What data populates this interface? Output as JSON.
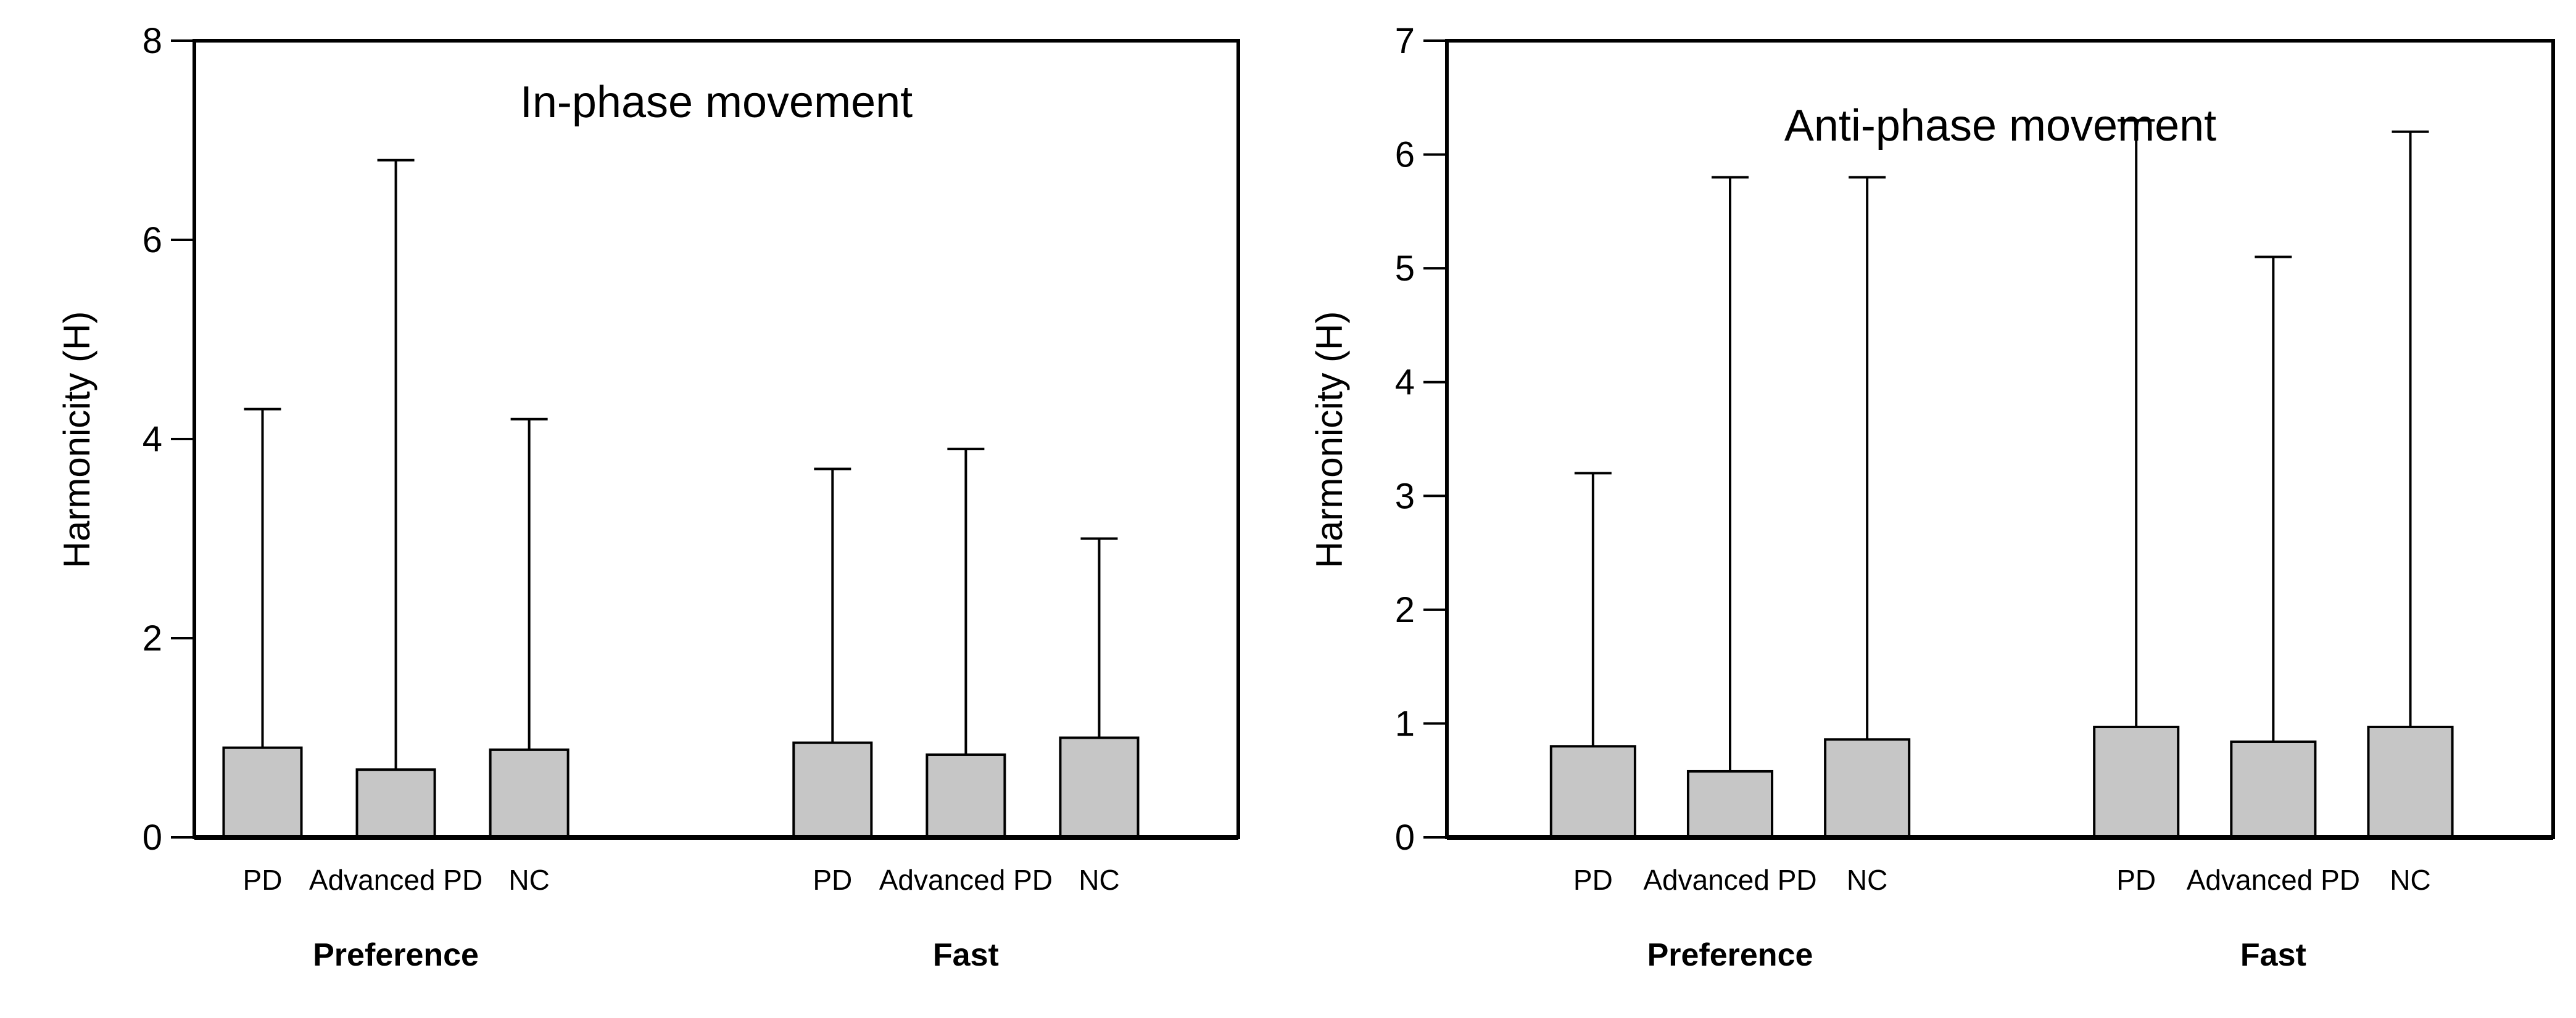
{
  "figure": {
    "description_colors": {
      "bar_fill": "#c6c6c6",
      "stroke": "#000000",
      "background": "#ffffff"
    }
  },
  "chart_data": [
    {
      "type": "bar",
      "title": "In-phase movement",
      "ylabel": "Harmonicity (H)",
      "xlabel": "",
      "ylim": [
        0,
        8
      ],
      "yticks": [
        0,
        2,
        4,
        6,
        8
      ],
      "grid": false,
      "legend_position": "none",
      "error_bars": "upper-only-with-caps",
      "bar_fill": "#c6c6c6",
      "groups": [
        {
          "label": "Preference",
          "categories": [
            "PD",
            "Advanced PD",
            "NC"
          ],
          "values": [
            0.9,
            0.68,
            0.88
          ],
          "error_tops": [
            4.3,
            6.8,
            4.2
          ]
        },
        {
          "label": "Fast",
          "categories": [
            "PD",
            "Advanced PD",
            "NC"
          ],
          "values": [
            0.95,
            0.83,
            1.0
          ],
          "error_tops": [
            3.7,
            3.9,
            3.0
          ]
        }
      ]
    },
    {
      "type": "bar",
      "title": "Anti-phase movement",
      "ylabel": "Harmonicity (H)",
      "xlabel": "",
      "ylim": [
        0,
        7
      ],
      "yticks": [
        0,
        1,
        2,
        3,
        4,
        5,
        6,
        7
      ],
      "grid": false,
      "legend_position": "none",
      "error_bars": "upper-only-with-caps",
      "bar_fill": "#c6c6c6",
      "groups": [
        {
          "label": "Preference",
          "categories": [
            "PD",
            "Advanced PD",
            "NC"
          ],
          "values": [
            0.8,
            0.58,
            0.86
          ],
          "error_tops": [
            3.2,
            5.8,
            5.8
          ]
        },
        {
          "label": "Fast",
          "categories": [
            "PD",
            "Advanced PD",
            "NC"
          ],
          "values": [
            0.97,
            0.84,
            0.97
          ],
          "error_tops": [
            6.3,
            5.1,
            6.2
          ]
        }
      ]
    }
  ]
}
